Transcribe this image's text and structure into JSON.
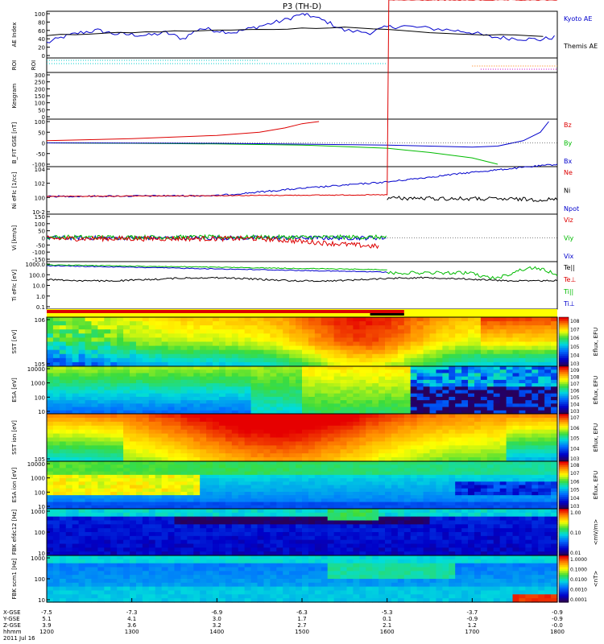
{
  "chart_data": {
    "type": "multi-panel",
    "title": "P3 (TH-D)",
    "x_range": [
      1200,
      1800
    ],
    "time_ticks": [
      "1200",
      "1300",
      "1400",
      "1500",
      "1600",
      "1700",
      "1800"
    ],
    "footer": {
      "row_labels": [
        "X-GSE",
        "Y-GSE",
        "Z-GSE",
        "hhmm",
        "2011 Jul 16"
      ],
      "xgse": [
        "-7.5",
        "-7.3",
        "-6.9",
        "-6.3",
        "-5.3",
        "-3.7",
        "-0.9"
      ],
      "ygse": [
        "5.1",
        "4.1",
        "3.0",
        "1.7",
        "0.1",
        "-0.9",
        "-0.9"
      ],
      "zgse": [
        "3.9",
        "3.6",
        "3.2",
        "2.7",
        "2.1",
        "1.2",
        "-0.0"
      ]
    },
    "panels": [
      {
        "id": "ae",
        "ylabel": "AE Index",
        "yticks": [
          "0",
          "20",
          "40",
          "60",
          "80",
          "100"
        ],
        "series": [
          {
            "name": "Kyoto AE",
            "color": "#0000cc",
            "x": [
              1200,
              1220,
              1240,
              1260,
              1280,
              1300,
              1320,
              1340,
              1360,
              1380,
              1400,
              1420,
              1440,
              1460,
              1480,
              1500,
              1510,
              1530,
              1550,
              1580,
              1600,
              1620,
              1650,
              1680,
              1700,
              1720,
              1740,
              1760,
              1780,
              1800
            ],
            "y": [
              30,
              45,
              55,
              60,
              52,
              50,
              48,
              55,
              40,
              65,
              60,
              55,
              65,
              75,
              85,
              100,
              95,
              80,
              60,
              55,
              68,
              70,
              65,
              60,
              55,
              45,
              42,
              40,
              38,
              45
            ]
          },
          {
            "name": "Themis AE",
            "color": "#000000",
            "x": [
              1200,
              1250,
              1300,
              1350,
              1400,
              1450,
              1500,
              1550,
              1600,
              1650,
              1700,
              1750,
              1800
            ],
            "y": [
              48,
              52,
              55,
              58,
              60,
              62,
              65,
              68,
              62,
              55,
              50,
              48,
              45
            ]
          }
        ]
      },
      {
        "id": "roi",
        "ylabel": "ROI"
      },
      {
        "id": "kp",
        "ylabel": "Kesgram",
        "yticks": [
          "0",
          "50",
          "100",
          "150",
          "200",
          "250",
          "300"
        ]
      },
      {
        "id": "bfit",
        "ylabel": "B_FIT GSE [nT]",
        "yticks": [
          "-100",
          "-50",
          "0",
          "50",
          "100"
        ],
        "series": [
          {
            "name": "Bz",
            "color": "#dd0000",
            "x": [
              1200,
              1300,
              1400,
              1450,
              1480,
              1500,
              1520
            ],
            "y": [
              10,
              20,
              35,
              50,
              70,
              90,
              100
            ]
          },
          {
            "name": "By",
            "color": "#00bb00",
            "x": [
              1200,
              1300,
              1400,
              1500,
              1600,
              1650,
              1700,
              1730
            ],
            "y": [
              0,
              -2,
              -5,
              -10,
              -25,
              -45,
              -70,
              -100
            ]
          },
          {
            "name": "Bx",
            "color": "#0000cc",
            "x": [
              1200,
              1400,
              1600,
              1700,
              1730,
              1760,
              1780,
              1790
            ],
            "y": [
              0,
              -2,
              -10,
              -20,
              -15,
              10,
              50,
              100
            ]
          }
        ]
      },
      {
        "id": "ni",
        "ylabel": "Ni eFIc [1/cc]",
        "yticks": [
          "10-2",
          "100",
          "102",
          "104"
        ],
        "series": [
          {
            "name": "Ne",
            "color": "#dd0000"
          },
          {
            "name": "Ni",
            "color": "#000000"
          },
          {
            "name": "Npot",
            "color": "#0000cc"
          }
        ]
      },
      {
        "id": "vi",
        "ylabel": "Vi [km/s]",
        "yticks": [
          "-150",
          "-100",
          "-50",
          "0",
          "50",
          "100",
          "150"
        ],
        "series": [
          {
            "name": "Viz",
            "color": "#dd0000"
          },
          {
            "name": "Viy",
            "color": "#00bb00"
          },
          {
            "name": "Vix",
            "color": "#0000cc"
          }
        ]
      },
      {
        "id": "ti",
        "ylabel": "Ti eFIc [eV]",
        "yticks": [
          "0.1",
          "1.0",
          "10.0",
          "100.0",
          "1000.0"
        ],
        "series": [
          {
            "name": "Te||",
            "color": "#000000"
          },
          {
            "name": "Te⊥",
            "color": "#dd0000"
          },
          {
            "name": "Ti||",
            "color": "#00bb00"
          },
          {
            "name": "Ti⊥",
            "color": "#0000cc"
          }
        ]
      },
      {
        "id": "sst_e",
        "ylabel": "SST [eV]",
        "yticks": [
          "105",
          "106"
        ],
        "cb_label": "Eflux, EFU",
        "cb_ticks": [
          "103",
          "104",
          "105",
          "106",
          "107",
          "108"
        ]
      },
      {
        "id": "esa_e",
        "ylabel": "ESA [eV]",
        "yticks": [
          "10",
          "100",
          "1000",
          "10000"
        ],
        "cb_label": "Eflux, EFU",
        "cb_ticks": [
          "103",
          "104",
          "105",
          "106",
          "107",
          "108",
          "109"
        ]
      },
      {
        "id": "sst_i",
        "ylabel": "SST ion [eV]",
        "yticks": [
          "105"
        ],
        "cb_label": "Eflux, EFU",
        "cb_ticks": [
          "103",
          "104",
          "105",
          "106",
          "107"
        ]
      },
      {
        "id": "esa_i",
        "ylabel": "ESA ion [eV]",
        "yticks": [
          "10",
          "100",
          "1000",
          "10000"
        ],
        "cb_label": "Eflux, EFU",
        "cb_ticks": [
          "103",
          "104",
          "105",
          "106",
          "107",
          "108"
        ]
      },
      {
        "id": "fbk1",
        "ylabel": "FBK efdc12 [Hz]",
        "yticks": [
          "10",
          "100",
          "1000"
        ],
        "cb_label": "<mV/m>",
        "cb_ticks": [
          "0.01",
          "0.10",
          "1.00"
        ]
      },
      {
        "id": "fbk2",
        "ylabel": "FBK scm1 [Hz]",
        "yticks": [
          "10",
          "100",
          "1000"
        ],
        "cb_label": "<nT>",
        "cb_ticks": [
          "0.0001",
          "0.0010",
          "0.0100",
          "0.1000",
          "1.0000"
        ]
      }
    ]
  },
  "colors": {
    "red": "#dd0000",
    "green": "#00bb00",
    "blue": "#0000cc",
    "cyan": "#00cccc",
    "orange": "#ff7700",
    "yellow": "#ffff00"
  }
}
